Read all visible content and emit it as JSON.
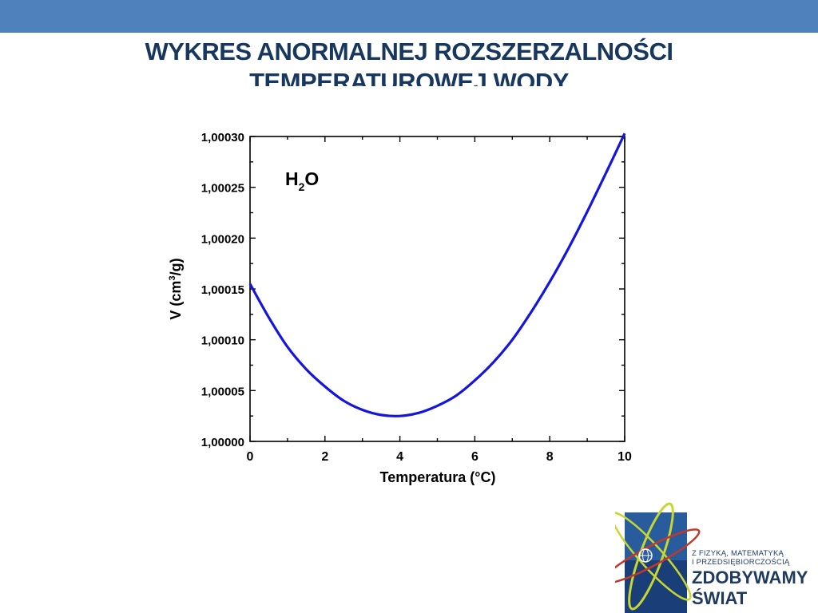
{
  "header": {
    "accent_color": "#4f81bd",
    "title_line1": "WYKRES ANORMALNEJ ROZSZERZALNOŚCI",
    "title_line2": "TEMPERATUROWEJ WODY"
  },
  "chart_data": {
    "type": "line",
    "title": "",
    "annotation_main": "H",
    "annotation_sub": "2",
    "annotation_tail": "O",
    "xlabel": "Temperatura (°C)",
    "ylabel_main": "V (cm",
    "ylabel_sup": "3",
    "ylabel_tail": "/g)",
    "xlim": [
      0,
      10
    ],
    "ylim": [
      1.0,
      1.0003
    ],
    "xticks": [
      0,
      2,
      4,
      6,
      8,
      10
    ],
    "xtick_labels": [
      "0",
      "2",
      "4",
      "6",
      "8",
      "10"
    ],
    "yticks": [
      1.0,
      1.00005,
      1.0001,
      1.00015,
      1.0002,
      1.00025,
      1.0003
    ],
    "ytick_labels": [
      "1,00000",
      "1,00005",
      "1,00010",
      "1,00015",
      "1,00020",
      "1,00025",
      "1,00030"
    ],
    "grid": false,
    "line_color": "#1515e0",
    "series": [
      {
        "x": [
          0,
          0.5,
          1,
          1.5,
          2,
          2.5,
          3,
          3.5,
          4,
          4.5,
          5,
          5.5,
          6,
          6.5,
          7,
          7.5,
          8,
          8.5,
          9,
          9.5,
          10
        ],
        "y": [
          1.000155,
          1.000122,
          1.000093,
          1.000071,
          1.000054,
          1.00004,
          1.000031,
          1.000026,
          1.000025,
          1.000028,
          1.000035,
          1.000045,
          1.00006,
          1.000078,
          1.0001,
          1.000127,
          1.000157,
          1.00019,
          1.000226,
          1.000264,
          1.000303
        ]
      }
    ]
  },
  "logo": {
    "line1": "Z FIZYKĄ, MATEMATYKĄ",
    "line2": "I PRZEDSIĘBIORCZOŚCIĄ",
    "line3": "ZDOBYWAMY",
    "line4": "ŚWIAT"
  }
}
